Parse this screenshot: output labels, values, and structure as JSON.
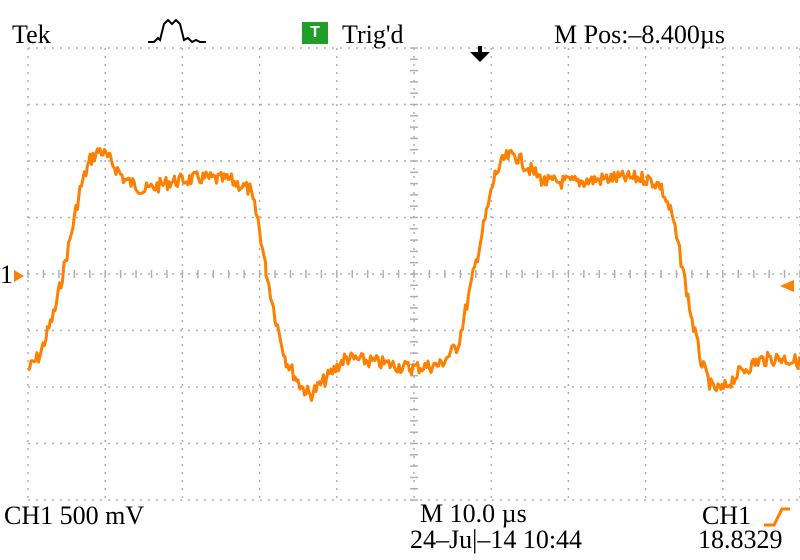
{
  "header": {
    "brand": "Tek",
    "trigger_badge": "T",
    "trigger_status": "Trig'd",
    "horizontal_position": "M Pos:–8.400µs",
    "acquisition_icon": "waveform-acquire-icon",
    "trigger_marker_icon": "trigger-arrow-down-icon"
  },
  "channel": {
    "ground_marker_label": "1",
    "ground_marker_icon": "channel-ground-arrow-icon",
    "trigger_level_icon": "trigger-level-arrow-icon",
    "trace_color": "#ff7f00"
  },
  "footer": {
    "ch1_scale": "CH1  500 mV",
    "timebase": "M 10.0 µs",
    "datetime": "24–Ju|–14 10:44",
    "trigger_source": "CH1",
    "trigger_slope_icon": "rising-edge-icon",
    "frequency": "18.8329"
  },
  "colors": {
    "graticule": "#b0b0b0",
    "trigger_badge": "#1f9f2a",
    "marker": "#ff7f00"
  }
}
